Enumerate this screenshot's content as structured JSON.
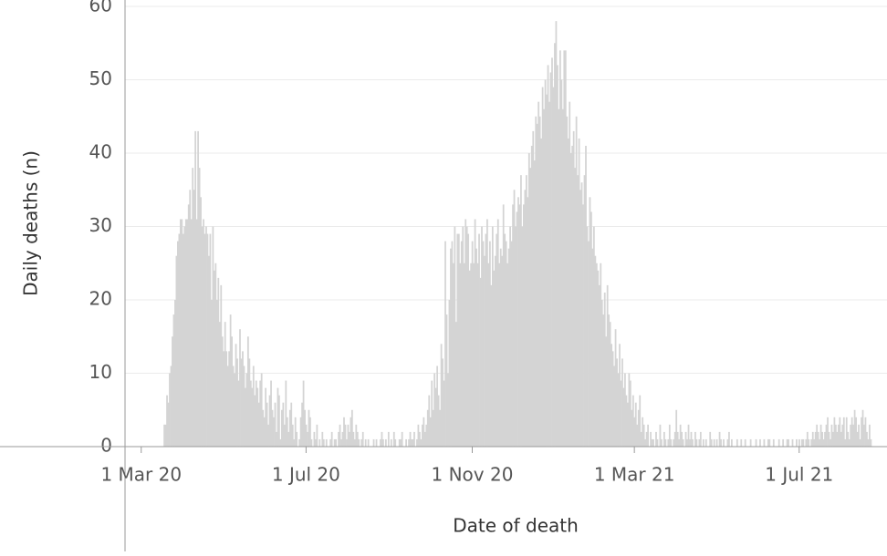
{
  "chart_data": {
    "type": "bar",
    "x_title": "Date of death",
    "y_title": "Daily deaths (n)",
    "color": "#d4d4d4",
    "grid": true,
    "xlim": [
      "2020-02-18",
      "2021-09-04"
    ],
    "xticks": [
      {
        "value": "2020-03-01",
        "label": "1 Mar 20"
      },
      {
        "value": "2020-07-01",
        "label": "1 Jul 20"
      },
      {
        "value": "2020-11-01",
        "label": "1 Nov 20"
      },
      {
        "value": "2021-03-01",
        "label": "1 Mar 21"
      },
      {
        "value": "2021-07-01",
        "label": "1 Jul 21"
      }
    ],
    "ylim": [
      0,
      60.5
    ],
    "yticks": [
      0,
      10,
      20,
      30,
      40,
      50,
      60
    ],
    "x": [
      "2020-03-18",
      "2020-03-19",
      "2020-03-20",
      "2020-03-21",
      "2020-03-22",
      "2020-03-23",
      "2020-03-24",
      "2020-03-25",
      "2020-03-26",
      "2020-03-27",
      "2020-03-28",
      "2020-03-29",
      "2020-03-30",
      "2020-03-31",
      "2020-04-01",
      "2020-04-02",
      "2020-04-03",
      "2020-04-04",
      "2020-04-05",
      "2020-04-06",
      "2020-04-07",
      "2020-04-08",
      "2020-04-09",
      "2020-04-10",
      "2020-04-11",
      "2020-04-12",
      "2020-04-13",
      "2020-04-14",
      "2020-04-15",
      "2020-04-16",
      "2020-04-17",
      "2020-04-18",
      "2020-04-19",
      "2020-04-20",
      "2020-04-21",
      "2020-04-22",
      "2020-04-23",
      "2020-04-24",
      "2020-04-25",
      "2020-04-26",
      "2020-04-27",
      "2020-04-28",
      "2020-04-29",
      "2020-04-30",
      "2020-05-01",
      "2020-05-02",
      "2020-05-03",
      "2020-05-04",
      "2020-05-05",
      "2020-05-06",
      "2020-05-07",
      "2020-05-08",
      "2020-05-09",
      "2020-05-10",
      "2020-05-11",
      "2020-05-12",
      "2020-05-13",
      "2020-05-14",
      "2020-05-15",
      "2020-05-16",
      "2020-05-17",
      "2020-05-18",
      "2020-05-19",
      "2020-05-20",
      "2020-05-21",
      "2020-05-22",
      "2020-05-23",
      "2020-05-24",
      "2020-05-25",
      "2020-05-26",
      "2020-05-27",
      "2020-05-28",
      "2020-05-29",
      "2020-05-30",
      "2020-05-31",
      "2020-06-01",
      "2020-06-02",
      "2020-06-03",
      "2020-06-04",
      "2020-06-05",
      "2020-06-06",
      "2020-06-07",
      "2020-06-08",
      "2020-06-09",
      "2020-06-10",
      "2020-06-11",
      "2020-06-12",
      "2020-06-13",
      "2020-06-14",
      "2020-06-15",
      "2020-06-16",
      "2020-06-17",
      "2020-06-18",
      "2020-06-19",
      "2020-06-20",
      "2020-06-21",
      "2020-06-22",
      "2020-06-23",
      "2020-06-24",
      "2020-06-25",
      "2020-06-26",
      "2020-06-27",
      "2020-06-28",
      "2020-06-29",
      "2020-06-30",
      "2020-07-01",
      "2020-07-02",
      "2020-07-03",
      "2020-07-04",
      "2020-07-05",
      "2020-07-06",
      "2020-07-07",
      "2020-07-08",
      "2020-07-09",
      "2020-07-10",
      "2020-07-11",
      "2020-07-12",
      "2020-07-13",
      "2020-07-14",
      "2020-07-15",
      "2020-07-16",
      "2020-07-17",
      "2020-07-18",
      "2020-07-19",
      "2020-07-20",
      "2020-07-21",
      "2020-07-22",
      "2020-07-23",
      "2020-07-24",
      "2020-07-25",
      "2020-07-26",
      "2020-07-27",
      "2020-07-28",
      "2020-07-29",
      "2020-07-30",
      "2020-07-31",
      "2020-08-01",
      "2020-08-02",
      "2020-08-03",
      "2020-08-04",
      "2020-08-05",
      "2020-08-06",
      "2020-08-07",
      "2020-08-08",
      "2020-08-09",
      "2020-08-10",
      "2020-08-11",
      "2020-08-12",
      "2020-08-13",
      "2020-08-14",
      "2020-08-15",
      "2020-08-16",
      "2020-08-17",
      "2020-08-18",
      "2020-08-19",
      "2020-08-20",
      "2020-08-21",
      "2020-08-22",
      "2020-08-23",
      "2020-08-24",
      "2020-08-25",
      "2020-08-26",
      "2020-08-27",
      "2020-08-28",
      "2020-08-29",
      "2020-08-30",
      "2020-08-31",
      "2020-09-01",
      "2020-09-02",
      "2020-09-03",
      "2020-09-04",
      "2020-09-05",
      "2020-09-06",
      "2020-09-07",
      "2020-09-08",
      "2020-09-09",
      "2020-09-10",
      "2020-09-11",
      "2020-09-12",
      "2020-09-13",
      "2020-09-14",
      "2020-09-15",
      "2020-09-16",
      "2020-09-17",
      "2020-09-18",
      "2020-09-19",
      "2020-09-20",
      "2020-09-21",
      "2020-09-22",
      "2020-09-23",
      "2020-09-24",
      "2020-09-25",
      "2020-09-26",
      "2020-09-27",
      "2020-09-28",
      "2020-09-29",
      "2020-09-30",
      "2020-10-01",
      "2020-10-02",
      "2020-10-03",
      "2020-10-04",
      "2020-10-05",
      "2020-10-06",
      "2020-10-07",
      "2020-10-08",
      "2020-10-09",
      "2020-10-10",
      "2020-10-11",
      "2020-10-12",
      "2020-10-13",
      "2020-10-14",
      "2020-10-15",
      "2020-10-16",
      "2020-10-17",
      "2020-10-18",
      "2020-10-19",
      "2020-10-20",
      "2020-10-21",
      "2020-10-22",
      "2020-10-23",
      "2020-10-24",
      "2020-10-25",
      "2020-10-26",
      "2020-10-27",
      "2020-10-28",
      "2020-10-29",
      "2020-10-30",
      "2020-10-31",
      "2020-11-01",
      "2020-11-02",
      "2020-11-03",
      "2020-11-04",
      "2020-11-05",
      "2020-11-06",
      "2020-11-07",
      "2020-11-08",
      "2020-11-09",
      "2020-11-10",
      "2020-11-11",
      "2020-11-12",
      "2020-11-13",
      "2020-11-14",
      "2020-11-15",
      "2020-11-16",
      "2020-11-17",
      "2020-11-18",
      "2020-11-19",
      "2020-11-20",
      "2020-11-21",
      "2020-11-22",
      "2020-11-23",
      "2020-11-24",
      "2020-11-25",
      "2020-11-26",
      "2020-11-27",
      "2020-11-28",
      "2020-11-29",
      "2020-11-30",
      "2020-12-01",
      "2020-12-02",
      "2020-12-03",
      "2020-12-04",
      "2020-12-05",
      "2020-12-06",
      "2020-12-07",
      "2020-12-08",
      "2020-12-09",
      "2020-12-10",
      "2020-12-11",
      "2020-12-12",
      "2020-12-13",
      "2020-12-14",
      "2020-12-15",
      "2020-12-16",
      "2020-12-17",
      "2020-12-18",
      "2020-12-19",
      "2020-12-20",
      "2020-12-21",
      "2020-12-22",
      "2020-12-23",
      "2020-12-24",
      "2020-12-25",
      "2020-12-26",
      "2020-12-27",
      "2020-12-28",
      "2020-12-29",
      "2020-12-30",
      "2020-12-31",
      "2021-01-01",
      "2021-01-02",
      "2021-01-03",
      "2021-01-04",
      "2021-01-05",
      "2021-01-06",
      "2021-01-07",
      "2021-01-08",
      "2021-01-09",
      "2021-01-10",
      "2021-01-11",
      "2021-01-12",
      "2021-01-13",
      "2021-01-14",
      "2021-01-15",
      "2021-01-16",
      "2021-01-17",
      "2021-01-18",
      "2021-01-19",
      "2021-01-20",
      "2021-01-21",
      "2021-01-22",
      "2021-01-23",
      "2021-01-24",
      "2021-01-25",
      "2021-01-26",
      "2021-01-27",
      "2021-01-28",
      "2021-01-29",
      "2021-01-30",
      "2021-01-31",
      "2021-02-01",
      "2021-02-02",
      "2021-02-03",
      "2021-02-04",
      "2021-02-05",
      "2021-02-06",
      "2021-02-07",
      "2021-02-08",
      "2021-02-09",
      "2021-02-10",
      "2021-02-11",
      "2021-02-12",
      "2021-02-13",
      "2021-02-14",
      "2021-02-15",
      "2021-02-16",
      "2021-02-17",
      "2021-02-18",
      "2021-02-19",
      "2021-02-20",
      "2021-02-21",
      "2021-02-22",
      "2021-02-23",
      "2021-02-24",
      "2021-02-25",
      "2021-02-26",
      "2021-02-27",
      "2021-02-28",
      "2021-03-01",
      "2021-03-02",
      "2021-03-03",
      "2021-03-04",
      "2021-03-05",
      "2021-03-06",
      "2021-03-07",
      "2021-03-08",
      "2021-03-09",
      "2021-03-10",
      "2021-03-11",
      "2021-03-12",
      "2021-03-13",
      "2021-03-14",
      "2021-03-15",
      "2021-03-16",
      "2021-03-17",
      "2021-03-18",
      "2021-03-19",
      "2021-03-20",
      "2021-03-21",
      "2021-03-22",
      "2021-03-23",
      "2021-03-24",
      "2021-03-25",
      "2021-03-26",
      "2021-03-27",
      "2021-03-28",
      "2021-03-29",
      "2021-03-30",
      "2021-03-31",
      "2021-04-01",
      "2021-04-02",
      "2021-04-03",
      "2021-04-04",
      "2021-04-05",
      "2021-04-06",
      "2021-04-07",
      "2021-04-08",
      "2021-04-09",
      "2021-04-10",
      "2021-04-11",
      "2021-04-12",
      "2021-04-13",
      "2021-04-14",
      "2021-04-15",
      "2021-04-16",
      "2021-04-17",
      "2021-04-18",
      "2021-04-19",
      "2021-04-20",
      "2021-04-21",
      "2021-04-22",
      "2021-04-23",
      "2021-04-24",
      "2021-04-25",
      "2021-04-26",
      "2021-04-27",
      "2021-04-28",
      "2021-04-29",
      "2021-04-30",
      "2021-05-01",
      "2021-05-02",
      "2021-05-03",
      "2021-05-04",
      "2021-05-05",
      "2021-05-06",
      "2021-05-07",
      "2021-05-08",
      "2021-05-09",
      "2021-05-10",
      "2021-05-11",
      "2021-05-12",
      "2021-05-13",
      "2021-05-14",
      "2021-05-15",
      "2021-05-16",
      "2021-05-17",
      "2021-05-18",
      "2021-05-19",
      "2021-05-20",
      "2021-05-21",
      "2021-05-22",
      "2021-05-23",
      "2021-05-24",
      "2021-05-25",
      "2021-05-26",
      "2021-05-27",
      "2021-05-28",
      "2021-05-29",
      "2021-05-30",
      "2021-05-31",
      "2021-06-01",
      "2021-06-02",
      "2021-06-03",
      "2021-06-04",
      "2021-06-05",
      "2021-06-06",
      "2021-06-07",
      "2021-06-08",
      "2021-06-09",
      "2021-06-10",
      "2021-06-11",
      "2021-06-12",
      "2021-06-13",
      "2021-06-14",
      "2021-06-15",
      "2021-06-16",
      "2021-06-17",
      "2021-06-18",
      "2021-06-19",
      "2021-06-20",
      "2021-06-21",
      "2021-06-22",
      "2021-06-23",
      "2021-06-24",
      "2021-06-25",
      "2021-06-26",
      "2021-06-27",
      "2021-06-28",
      "2021-06-29",
      "2021-06-30",
      "2021-07-01",
      "2021-07-02",
      "2021-07-03",
      "2021-07-04",
      "2021-07-05",
      "2021-07-06",
      "2021-07-07",
      "2021-07-08",
      "2021-07-09",
      "2021-07-10",
      "2021-07-11",
      "2021-07-12",
      "2021-07-13",
      "2021-07-14",
      "2021-07-15",
      "2021-07-16",
      "2021-07-17",
      "2021-07-18",
      "2021-07-19",
      "2021-07-20",
      "2021-07-21",
      "2021-07-22",
      "2021-07-23",
      "2021-07-24",
      "2021-07-25",
      "2021-07-26",
      "2021-07-27",
      "2021-07-28",
      "2021-07-29",
      "2021-07-30",
      "2021-07-31",
      "2021-08-01",
      "2021-08-02",
      "2021-08-03",
      "2021-08-04",
      "2021-08-05",
      "2021-08-06",
      "2021-08-07",
      "2021-08-08",
      "2021-08-09",
      "2021-08-10",
      "2021-08-11",
      "2021-08-12",
      "2021-08-13",
      "2021-08-14",
      "2021-08-15",
      "2021-08-16",
      "2021-08-17",
      "2021-08-18",
      "2021-08-19",
      "2021-08-20",
      "2021-08-21",
      "2021-08-22",
      "2021-08-23"
    ],
    "values": [
      3,
      3,
      7,
      6,
      10,
      11,
      15,
      18,
      20,
      26,
      28,
      29,
      31,
      31,
      29,
      30,
      31,
      31,
      33,
      35,
      31,
      38,
      35,
      43,
      31,
      43,
      38,
      34,
      30,
      31,
      29,
      30,
      29,
      26,
      29,
      20,
      30,
      24,
      25,
      20,
      23,
      17,
      22,
      15,
      13,
      17,
      13,
      11,
      13,
      18,
      15,
      11,
      10,
      14,
      12,
      9,
      16,
      12,
      13,
      11,
      8,
      10,
      15,
      12,
      9,
      8,
      11,
      7,
      9,
      8,
      6,
      9,
      10,
      5,
      4,
      8,
      6,
      3,
      7,
      9,
      5,
      4,
      6,
      2,
      8,
      7,
      1,
      5,
      6,
      3,
      9,
      4,
      2,
      5,
      6,
      3,
      1,
      4,
      2,
      0,
      1,
      4,
      6,
      9,
      5,
      3,
      2,
      5,
      4,
      1,
      0,
      2,
      1,
      3,
      0,
      1,
      0,
      2,
      1,
      0,
      1,
      0,
      0,
      1,
      2,
      0,
      1,
      1,
      0,
      2,
      3,
      1,
      2,
      4,
      3,
      1,
      3,
      2,
      4,
      5,
      2,
      1,
      3,
      2,
      1,
      0,
      1,
      2,
      0,
      1,
      0,
      1,
      0,
      0,
      0,
      1,
      0,
      1,
      0,
      0,
      1,
      2,
      1,
      0,
      1,
      0,
      2,
      0,
      1,
      0,
      2,
      1,
      0,
      0,
      1,
      1,
      2,
      0,
      0,
      1,
      0,
      1,
      2,
      1,
      1,
      2,
      0,
      1,
      3,
      2,
      1,
      3,
      4,
      2,
      3,
      5,
      7,
      4,
      9,
      5,
      10,
      8,
      11,
      7,
      5,
      14,
      12,
      9,
      28,
      18,
      10,
      20,
      27,
      28,
      25,
      30,
      17,
      29,
      29,
      25,
      28,
      30,
      25,
      31,
      30,
      29,
      24,
      25,
      28,
      25,
      31,
      27,
      25,
      29,
      23,
      30,
      28,
      26,
      29,
      31,
      25,
      28,
      22,
      30,
      24,
      26,
      29,
      31,
      25,
      27,
      26,
      33,
      29,
      28,
      25,
      27,
      30,
      28,
      33,
      35,
      30,
      32,
      34,
      33,
      37,
      30,
      33,
      35,
      37,
      34,
      40,
      38,
      41,
      43,
      39,
      45,
      44,
      47,
      45,
      42,
      49,
      46,
      50,
      48,
      52,
      47,
      51,
      53,
      49,
      55,
      58,
      52,
      46,
      54,
      50,
      46,
      54,
      54,
      45,
      42,
      47,
      40,
      41,
      43,
      38,
      45,
      37,
      42,
      35,
      36,
      33,
      37,
      41,
      30,
      28,
      34,
      32,
      27,
      30,
      26,
      25,
      24,
      22,
      25,
      20,
      18,
      21,
      15,
      22,
      18,
      17,
      14,
      13,
      11,
      16,
      12,
      10,
      14,
      9,
      12,
      8,
      10,
      7,
      6,
      10,
      9,
      5,
      7,
      4,
      6,
      3,
      5,
      7,
      2,
      4,
      3,
      1,
      2,
      3,
      0,
      2,
      1,
      1,
      0,
      2,
      1,
      0,
      3,
      1,
      0,
      2,
      1,
      0,
      1,
      3,
      1,
      0,
      1,
      2,
      5,
      2,
      1,
      3,
      2,
      1,
      0,
      2,
      1,
      3,
      1,
      2,
      1,
      0,
      2,
      1,
      0,
      1,
      2,
      0,
      1,
      0,
      1,
      0,
      0,
      2,
      1,
      0,
      1,
      0,
      1,
      0,
      2,
      1,
      0,
      1,
      0,
      0,
      1,
      2,
      0,
      1,
      0,
      0,
      0,
      1,
      0,
      0,
      1,
      0,
      0,
      1,
      0,
      0,
      0,
      1,
      0,
      0,
      0,
      1,
      0,
      0,
      1,
      0,
      0,
      1,
      0,
      0,
      1,
      1,
      0,
      0,
      1,
      0,
      0,
      0,
      1,
      0,
      0,
      1,
      0,
      0,
      1,
      1,
      0,
      0,
      1,
      0,
      0,
      1,
      0,
      1,
      0,
      1,
      1,
      0,
      1,
      2,
      1,
      0,
      1,
      2,
      1,
      2,
      3,
      2,
      1,
      3,
      2,
      1,
      2,
      3,
      4,
      2,
      1,
      3,
      2,
      4,
      3,
      2,
      3,
      4,
      2,
      3,
      4,
      1,
      4,
      2,
      1,
      3,
      4,
      3,
      5,
      4,
      2,
      3,
      1,
      4,
      5,
      3,
      4,
      2,
      1,
      3,
      1
    ]
  }
}
